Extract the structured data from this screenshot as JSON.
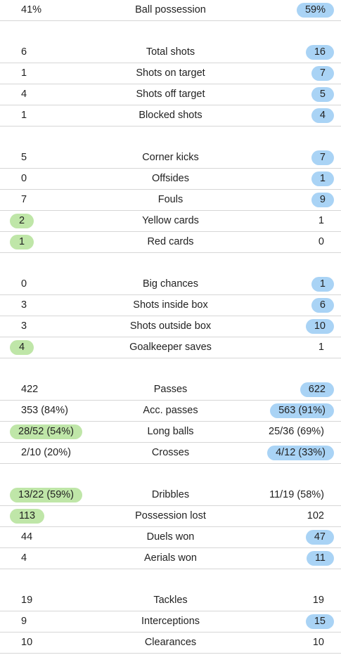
{
  "colors": {
    "home_highlight": "#bfe6a8",
    "away_highlight": "#a9d3f5",
    "divider": "#d6d6d6"
  },
  "groups": [
    {
      "rows": [
        {
          "label": "Ball possession",
          "home": "41%",
          "away": "59%",
          "highlight": "away"
        }
      ]
    },
    {
      "rows": [
        {
          "label": "Total shots",
          "home": "6",
          "away": "16",
          "highlight": "away"
        },
        {
          "label": "Shots on target",
          "home": "1",
          "away": "7",
          "highlight": "away"
        },
        {
          "label": "Shots off target",
          "home": "4",
          "away": "5",
          "highlight": "away"
        },
        {
          "label": "Blocked shots",
          "home": "1",
          "away": "4",
          "highlight": "away"
        }
      ]
    },
    {
      "rows": [
        {
          "label": "Corner kicks",
          "home": "5",
          "away": "7",
          "highlight": "away"
        },
        {
          "label": "Offsides",
          "home": "0",
          "away": "1",
          "highlight": "away"
        },
        {
          "label": "Fouls",
          "home": "7",
          "away": "9",
          "highlight": "away"
        },
        {
          "label": "Yellow cards",
          "home": "2",
          "away": "1",
          "highlight": "home"
        },
        {
          "label": "Red cards",
          "home": "1",
          "away": "0",
          "highlight": "home"
        }
      ]
    },
    {
      "rows": [
        {
          "label": "Big chances",
          "home": "0",
          "away": "1",
          "highlight": "away"
        },
        {
          "label": "Shots inside box",
          "home": "3",
          "away": "6",
          "highlight": "away"
        },
        {
          "label": "Shots outside box",
          "home": "3",
          "away": "10",
          "highlight": "away"
        },
        {
          "label": "Goalkeeper saves",
          "home": "4",
          "away": "1",
          "highlight": "home"
        }
      ]
    },
    {
      "rows": [
        {
          "label": "Passes",
          "home": "422",
          "away": "622",
          "highlight": "away"
        },
        {
          "label": "Acc. passes",
          "home": "353 (84%)",
          "away": "563 (91%)",
          "highlight": "away"
        },
        {
          "label": "Long balls",
          "home": "28/52 (54%)",
          "away": "25/36 (69%)",
          "highlight": "home"
        },
        {
          "label": "Crosses",
          "home": "2/10 (20%)",
          "away": "4/12 (33%)",
          "highlight": "away"
        }
      ]
    },
    {
      "rows": [
        {
          "label": "Dribbles",
          "home": "13/22 (59%)",
          "away": "11/19 (58%)",
          "highlight": "home"
        },
        {
          "label": "Possession lost",
          "home": "113",
          "away": "102",
          "highlight": "home"
        },
        {
          "label": "Duels won",
          "home": "44",
          "away": "47",
          "highlight": "away"
        },
        {
          "label": "Aerials won",
          "home": "4",
          "away": "11",
          "highlight": "away"
        }
      ]
    },
    {
      "rows": [
        {
          "label": "Tackles",
          "home": "19",
          "away": "19",
          "highlight": "none"
        },
        {
          "label": "Interceptions",
          "home": "9",
          "away": "15",
          "highlight": "away"
        },
        {
          "label": "Clearances",
          "home": "10",
          "away": "10",
          "highlight": "none"
        }
      ]
    }
  ]
}
